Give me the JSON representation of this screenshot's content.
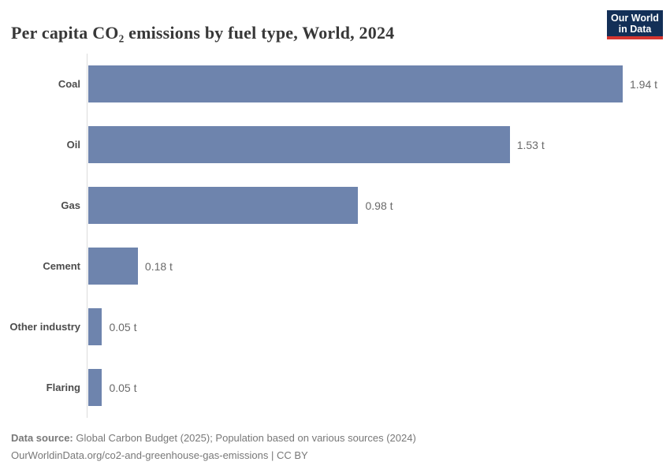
{
  "header": {
    "title": "Per capita CO₂ emissions by fuel type, World, 2024",
    "logo": {
      "line1": "Our World",
      "line2": "in Data",
      "background_color": "#132f57",
      "accent_color": "#d5352f"
    }
  },
  "chart_data": {
    "type": "bar",
    "orientation": "horizontal",
    "title": "Per capita CO₂ emissions by fuel type, World, 2024",
    "categories": [
      "Coal",
      "Oil",
      "Gas",
      "Cement",
      "Other industry",
      "Flaring"
    ],
    "values": [
      1.94,
      1.53,
      0.98,
      0.18,
      0.05,
      0.05
    ],
    "value_labels": [
      "1.94 t",
      "1.53 t",
      "0.98 t",
      "0.18 t",
      "0.05 t",
      "0.05 t"
    ],
    "unit": "t",
    "xlim": [
      0,
      1.94
    ],
    "xlabel": "",
    "ylabel": "",
    "grid": false,
    "legend": "none",
    "bar_color": "#6e84ad",
    "axis_line_color": "#dcdcdc"
  },
  "footer": {
    "source_label": "Data source:",
    "source_text": " Global Carbon Budget (2025); Population based on various sources (2024)",
    "license_line": "OurWorldinData.org/co2-and-greenhouse-gas-emissions | CC BY"
  }
}
